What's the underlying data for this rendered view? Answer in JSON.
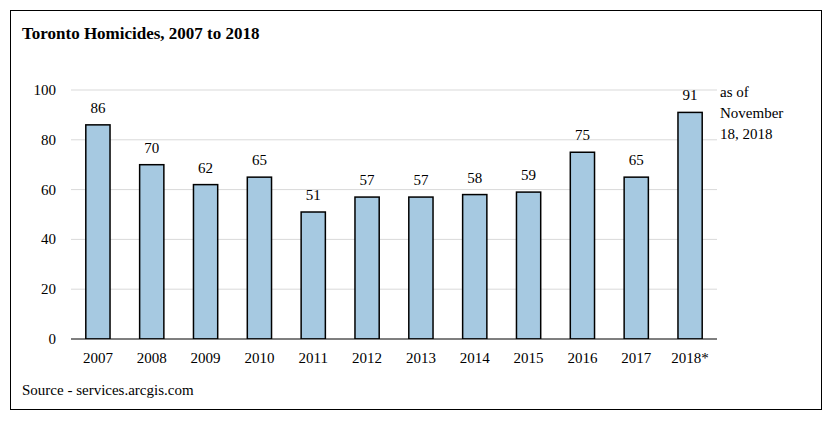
{
  "chart_data": {
    "type": "bar",
    "title": "Toronto Homicides, 2007 to 2018",
    "categories": [
      "2007",
      "2008",
      "2009",
      "2010",
      "2011",
      "2012",
      "2013",
      "2014",
      "2015",
      "2016",
      "2017",
      "2018*"
    ],
    "values": [
      86,
      70,
      62,
      65,
      51,
      57,
      57,
      58,
      59,
      75,
      65,
      91
    ],
    "color": "#a6c9e1",
    "ylim": [
      0,
      100
    ],
    "yticks": [
      0,
      20,
      40,
      60,
      80,
      100
    ],
    "grid": true,
    "data_labels": true,
    "annotation": [
      "as of",
      "November",
      "18, 2018"
    ],
    "source": "Source - services.arcgis.com"
  }
}
